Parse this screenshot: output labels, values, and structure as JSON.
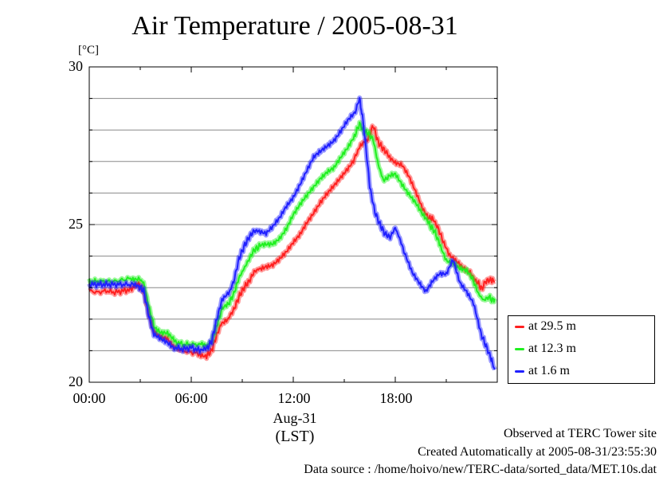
{
  "chart_data": {
    "type": "line",
    "title": "Air Temperature / 2005-08-31",
    "ylabel_unit": "[°C]",
    "ylim": [
      20,
      30
    ],
    "yticks": [
      "20",
      "25",
      "30"
    ],
    "y_gridlines": [
      21,
      22,
      23,
      24,
      25,
      26,
      27,
      28,
      29
    ],
    "xlim": [
      0,
      24
    ],
    "xticks": [
      {
        "value": 0,
        "label": "00:00"
      },
      {
        "value": 6,
        "label": "06:00"
      },
      {
        "value": 12,
        "label": "12:00"
      },
      {
        "value": 18,
        "label": "18:00"
      }
    ],
    "x_date_label": "Aug-31",
    "x_zone_label": "(LST)",
    "legend_position": "lower-right outside",
    "series": [
      {
        "name": "at 29.5 m",
        "color": "#ff2020",
        "points": [
          [
            0.0,
            22.9
          ],
          [
            0.5,
            22.85
          ],
          [
            1.0,
            22.9
          ],
          [
            1.5,
            22.85
          ],
          [
            2.0,
            22.9
          ],
          [
            2.5,
            22.95
          ],
          [
            2.9,
            23.1
          ],
          [
            3.2,
            22.9
          ],
          [
            3.5,
            22.2
          ],
          [
            3.8,
            21.6
          ],
          [
            4.2,
            21.4
          ],
          [
            4.6,
            21.35
          ],
          [
            5.0,
            21.1
          ],
          [
            5.5,
            21.0
          ],
          [
            6.0,
            20.95
          ],
          [
            6.5,
            20.9
          ],
          [
            6.9,
            20.85
          ],
          [
            7.2,
            21.0
          ],
          [
            7.5,
            21.5
          ],
          [
            7.8,
            21.9
          ],
          [
            8.2,
            22.05
          ],
          [
            8.5,
            22.3
          ],
          [
            8.8,
            22.7
          ],
          [
            9.1,
            23.0
          ],
          [
            9.4,
            23.2
          ],
          [
            9.7,
            23.5
          ],
          [
            10.0,
            23.6
          ],
          [
            10.4,
            23.7
          ],
          [
            10.8,
            23.75
          ],
          [
            11.2,
            23.9
          ],
          [
            11.6,
            24.1
          ],
          [
            12.0,
            24.4
          ],
          [
            12.4,
            24.7
          ],
          [
            12.8,
            25.1
          ],
          [
            13.2,
            25.4
          ],
          [
            13.6,
            25.7
          ],
          [
            14.0,
            25.95
          ],
          [
            14.4,
            26.2
          ],
          [
            14.8,
            26.5
          ],
          [
            15.2,
            26.8
          ],
          [
            15.6,
            27.1
          ],
          [
            15.9,
            27.45
          ],
          [
            16.1,
            27.6
          ],
          [
            16.4,
            27.7
          ],
          [
            16.7,
            28.15
          ],
          [
            17.0,
            27.6
          ],
          [
            17.3,
            27.4
          ],
          [
            17.6,
            27.2
          ],
          [
            18.0,
            27.0
          ],
          [
            18.4,
            26.9
          ],
          [
            18.8,
            26.5
          ],
          [
            19.2,
            26.0
          ],
          [
            19.6,
            25.5
          ],
          [
            20.0,
            25.2
          ],
          [
            20.2,
            25.2
          ],
          [
            20.5,
            24.9
          ],
          [
            20.8,
            24.5
          ],
          [
            21.2,
            24.0
          ],
          [
            21.6,
            23.8
          ],
          [
            22.0,
            23.6
          ],
          [
            22.4,
            23.5
          ],
          [
            22.8,
            23.2
          ],
          [
            23.1,
            22.95
          ],
          [
            23.3,
            23.2
          ],
          [
            23.6,
            23.25
          ],
          [
            23.85,
            23.2
          ]
        ]
      },
      {
        "name": "at 12.3 m",
        "color": "#20f020",
        "points": [
          [
            0.0,
            23.2
          ],
          [
            0.5,
            23.2
          ],
          [
            1.0,
            23.2
          ],
          [
            1.5,
            23.2
          ],
          [
            2.0,
            23.25
          ],
          [
            2.5,
            23.3
          ],
          [
            2.9,
            23.3
          ],
          [
            3.2,
            23.15
          ],
          [
            3.5,
            22.4
          ],
          [
            3.8,
            21.8
          ],
          [
            4.2,
            21.6
          ],
          [
            4.6,
            21.55
          ],
          [
            5.0,
            21.3
          ],
          [
            5.5,
            21.2
          ],
          [
            6.0,
            21.2
          ],
          [
            6.5,
            21.2
          ],
          [
            6.9,
            21.15
          ],
          [
            7.2,
            21.3
          ],
          [
            7.5,
            21.8
          ],
          [
            7.8,
            22.3
          ],
          [
            8.2,
            22.5
          ],
          [
            8.5,
            22.8
          ],
          [
            8.8,
            23.3
          ],
          [
            9.1,
            23.6
          ],
          [
            9.4,
            23.9
          ],
          [
            9.7,
            24.2
          ],
          [
            10.0,
            24.3
          ],
          [
            10.4,
            24.35
          ],
          [
            10.8,
            24.4
          ],
          [
            11.2,
            24.6
          ],
          [
            11.6,
            24.9
          ],
          [
            12.0,
            25.3
          ],
          [
            12.4,
            25.6
          ],
          [
            12.8,
            25.9
          ],
          [
            13.2,
            26.2
          ],
          [
            13.6,
            26.5
          ],
          [
            14.0,
            26.7
          ],
          [
            14.4,
            26.8
          ],
          [
            14.8,
            27.1
          ],
          [
            15.2,
            27.4
          ],
          [
            15.6,
            27.8
          ],
          [
            15.9,
            28.2
          ],
          [
            16.1,
            28.0
          ],
          [
            16.4,
            27.9
          ],
          [
            16.7,
            27.7
          ],
          [
            17.0,
            26.9
          ],
          [
            17.3,
            26.4
          ],
          [
            17.6,
            26.5
          ],
          [
            18.0,
            26.6
          ],
          [
            18.4,
            26.3
          ],
          [
            18.8,
            26.0
          ],
          [
            19.2,
            25.7
          ],
          [
            19.6,
            25.3
          ],
          [
            20.0,
            25.0
          ],
          [
            20.3,
            24.8
          ],
          [
            20.6,
            24.4
          ],
          [
            21.0,
            23.9
          ],
          [
            21.4,
            23.8
          ],
          [
            21.8,
            23.6
          ],
          [
            22.2,
            23.5
          ],
          [
            22.6,
            23.2
          ],
          [
            22.9,
            22.8
          ],
          [
            23.2,
            22.6
          ],
          [
            23.5,
            22.7
          ],
          [
            23.7,
            22.6
          ],
          [
            23.85,
            22.65
          ]
        ]
      },
      {
        "name": "at 1.6 m",
        "color": "#2020ff",
        "points": [
          [
            0.0,
            23.1
          ],
          [
            0.5,
            23.1
          ],
          [
            1.0,
            23.1
          ],
          [
            1.5,
            23.1
          ],
          [
            2.0,
            23.1
          ],
          [
            2.5,
            23.1
          ],
          [
            2.9,
            23.05
          ],
          [
            3.2,
            22.9
          ],
          [
            3.5,
            22.1
          ],
          [
            3.8,
            21.5
          ],
          [
            4.2,
            21.4
          ],
          [
            4.6,
            21.3
          ],
          [
            5.0,
            21.1
          ],
          [
            5.5,
            21.05
          ],
          [
            6.0,
            21.1
          ],
          [
            6.5,
            21.0
          ],
          [
            6.9,
            21.05
          ],
          [
            7.2,
            21.3
          ],
          [
            7.5,
            22.0
          ],
          [
            7.8,
            22.6
          ],
          [
            8.2,
            22.8
          ],
          [
            8.5,
            23.2
          ],
          [
            8.8,
            23.9
          ],
          [
            9.1,
            24.3
          ],
          [
            9.4,
            24.6
          ],
          [
            9.7,
            24.8
          ],
          [
            10.0,
            24.8
          ],
          [
            10.4,
            24.7
          ],
          [
            10.8,
            24.9
          ],
          [
            11.2,
            25.2
          ],
          [
            11.6,
            25.6
          ],
          [
            12.0,
            25.9
          ],
          [
            12.4,
            26.3
          ],
          [
            12.8,
            26.7
          ],
          [
            13.2,
            27.1
          ],
          [
            13.6,
            27.3
          ],
          [
            14.0,
            27.5
          ],
          [
            14.4,
            27.7
          ],
          [
            14.8,
            28.0
          ],
          [
            15.2,
            28.3
          ],
          [
            15.6,
            28.5
          ],
          [
            15.9,
            29.0
          ],
          [
            16.1,
            28.3
          ],
          [
            16.3,
            27.3
          ],
          [
            16.5,
            26.2
          ],
          [
            16.8,
            25.4
          ],
          [
            17.1,
            25.0
          ],
          [
            17.4,
            24.7
          ],
          [
            17.7,
            24.6
          ],
          [
            18.0,
            24.9
          ],
          [
            18.3,
            24.5
          ],
          [
            18.6,
            24.0
          ],
          [
            19.0,
            23.5
          ],
          [
            19.4,
            23.2
          ],
          [
            19.8,
            22.9
          ],
          [
            20.2,
            23.2
          ],
          [
            20.6,
            23.4
          ],
          [
            21.0,
            23.4
          ],
          [
            21.4,
            23.9
          ],
          [
            21.8,
            23.2
          ],
          [
            22.2,
            22.9
          ],
          [
            22.6,
            22.5
          ],
          [
            23.0,
            21.6
          ],
          [
            23.3,
            21.2
          ],
          [
            23.6,
            20.8
          ],
          [
            23.85,
            20.4
          ]
        ]
      }
    ]
  },
  "footer": {
    "line1": "Observed at TERC Tower site",
    "line2": "Created Automatically at 2005-08-31/23:55:30",
    "line3": "Data source : /home/hoivo/new/TERC-data/sorted_data/MET.10s.dat"
  }
}
